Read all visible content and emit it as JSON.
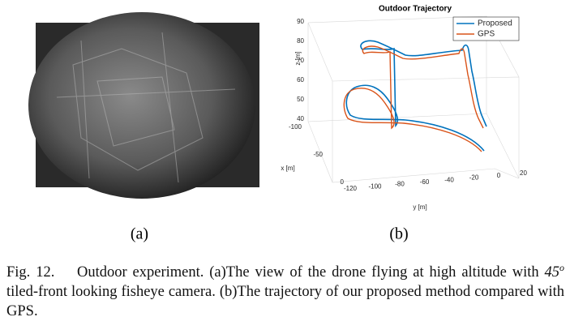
{
  "panel_a": {
    "label": "(a)"
  },
  "panel_b": {
    "label": "(b)",
    "title": "Outdoor Trajectory",
    "legend": [
      {
        "name": "Proposed",
        "color": "#0072bd"
      },
      {
        "name": "GPS",
        "color": "#d95319"
      }
    ],
    "z_label": "z [m]",
    "x_label": "x [m]",
    "y_label": "y [m]",
    "z_ticks": [
      "90",
      "80",
      "70",
      "60",
      "50",
      "40"
    ],
    "x_ticks": [
      "-100",
      "-50",
      "0"
    ],
    "y_ticks": [
      "-120",
      "-100",
      "-80",
      "-60",
      "-40",
      "-20",
      "0",
      "20"
    ]
  },
  "caption": {
    "number": "Fig. 12.",
    "text_1": "Outdoor experiment. (a)The view of the drone flying at high altitude with",
    "math_base": "45",
    "math_sup": "o",
    "text_2": "tiled-front looking fisheye camera. (b)The trajectory of our proposed method compared with GPS."
  }
}
